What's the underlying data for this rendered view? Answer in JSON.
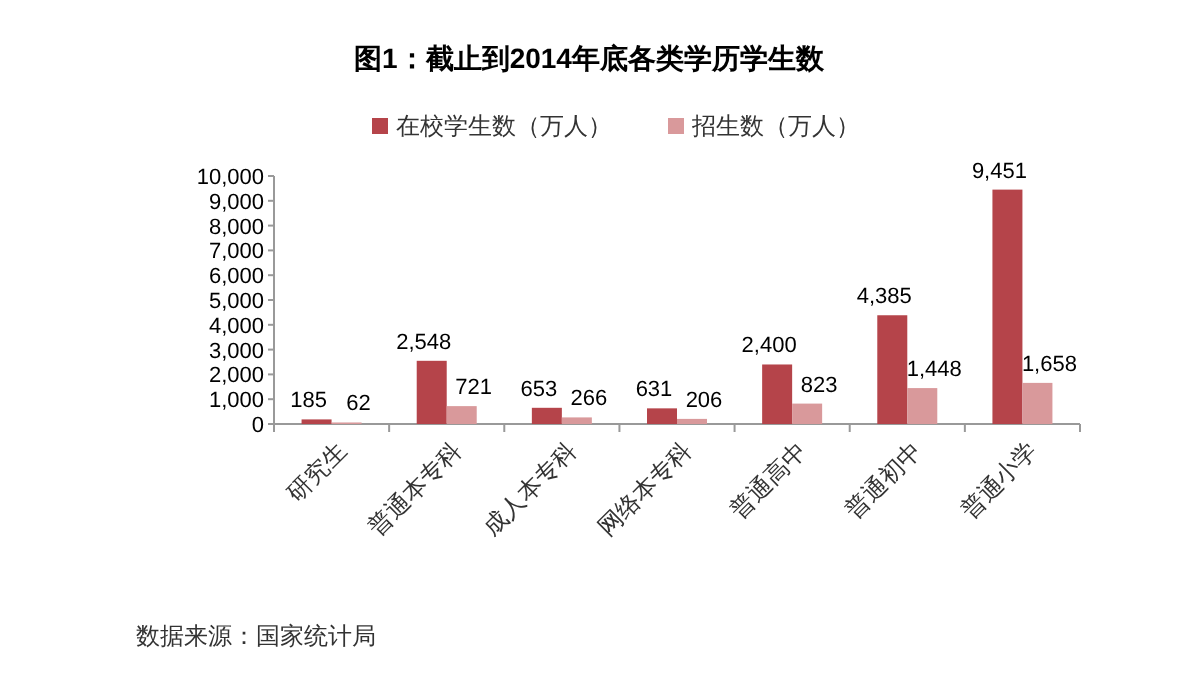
{
  "chart_data": {
    "type": "bar",
    "title": "图1：截止到2014年底各类学历学生数",
    "categories": [
      "研究生",
      "普通本专科",
      "成人本专科",
      "网络本专科",
      "普通高中",
      "普通初中",
      "普通小学"
    ],
    "series": [
      {
        "name": "在校学生数（万人）",
        "color": "#b5444a",
        "values": [
          185,
          2548,
          653,
          631,
          2400,
          4385,
          9451
        ]
      },
      {
        "name": "招生数（万人）",
        "color": "#d9999b",
        "values": [
          62,
          721,
          266,
          206,
          823,
          1448,
          1658
        ]
      }
    ],
    "ylim": [
      0,
      10000
    ],
    "yticks": [
      {
        "value": 0,
        "label": "0"
      },
      {
        "value": 1000,
        "label": "1,000"
      },
      {
        "value": 2000,
        "label": "2,000"
      },
      {
        "value": 3000,
        "label": "3,000"
      },
      {
        "value": 4000,
        "label": "4,000"
      },
      {
        "value": 5000,
        "label": "5,000"
      },
      {
        "value": 6000,
        "label": "6,000"
      },
      {
        "value": 7000,
        "label": "7,000"
      },
      {
        "value": 8000,
        "label": "8,000"
      },
      {
        "value": 9000,
        "label": "9,000"
      },
      {
        "value": 10000,
        "label": "10,000"
      }
    ],
    "value_labels": [
      [
        "185",
        "2,548",
        "653",
        "631",
        "2,400",
        "4,385",
        "9,451"
      ],
      [
        "62",
        "721",
        "266",
        "206",
        "823",
        "1,448",
        "1,658"
      ]
    ],
    "legend": "top",
    "grid": false,
    "annotations": [
      "数据来源：国家统计局"
    ]
  }
}
